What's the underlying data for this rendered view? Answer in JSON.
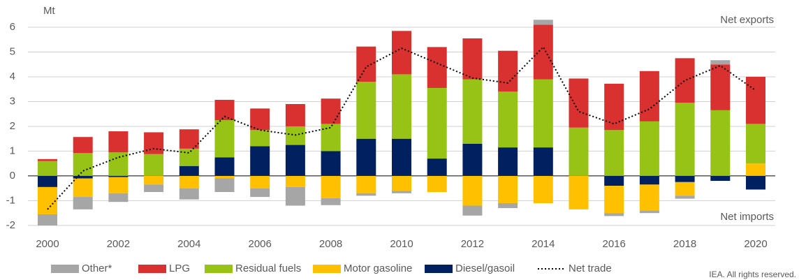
{
  "chart_data": {
    "type": "bar",
    "stacked": true,
    "y_label": "Mt",
    "annotations": [
      "Net exports",
      "Net imports"
    ],
    "credit": "IEA. All rights reserved.",
    "categories": [
      "2000",
      null,
      "2002",
      null,
      "2004",
      null,
      "2006",
      null,
      "2008",
      null,
      "2010",
      null,
      "2012",
      null,
      "2014",
      null,
      "2016",
      null,
      "2018",
      null,
      "2020"
    ],
    "series": [
      {
        "name": "Other*",
        "color": "#a6a6a6",
        "values": [
          -0.45,
          -0.5,
          -0.35,
          -0.3,
          -0.45,
          -0.55,
          -0.35,
          -0.75,
          -0.28,
          -0.1,
          -0.1,
          0,
          -0.4,
          -0.2,
          0.2,
          0,
          -0.12,
          -0.1,
          -0.12,
          0.17,
          0
        ]
      },
      {
        "name": "LPG",
        "color": "#d9312f",
        "values": [
          0.08,
          0.65,
          0.85,
          0.88,
          0.78,
          0.82,
          0.87,
          0.9,
          1.02,
          1.42,
          1.75,
          1.65,
          1.65,
          1.65,
          2.2,
          1.98,
          1.87,
          2.03,
          1.8,
          1.85,
          1.9
        ]
      },
      {
        "name": "Residual fuels",
        "color": "#97c216",
        "values": [
          0.6,
          0.92,
          0.95,
          0.88,
          0.7,
          1.5,
          0.65,
          0.75,
          1.1,
          2.3,
          2.6,
          2.85,
          2.6,
          2.25,
          2.75,
          1.95,
          1.85,
          2.2,
          2.95,
          2.65,
          1.6
        ]
      },
      {
        "name": "Motor gasoline",
        "color": "#ffc000",
        "values": [
          -1.1,
          -0.75,
          -0.65,
          -0.35,
          -0.5,
          -0.1,
          -0.5,
          -0.45,
          -0.9,
          -0.7,
          -0.6,
          -0.65,
          -1.2,
          -1.1,
          -1.1,
          -1.35,
          -1.1,
          -1.05,
          -0.55,
          0,
          0.5
        ]
      },
      {
        "name": "Diesel/gasoil",
        "color": "#002060",
        "values": [
          -0.45,
          -0.1,
          -0.05,
          0,
          0.4,
          0.75,
          1.2,
          1.25,
          1.0,
          1.5,
          1.5,
          0.7,
          1.3,
          1.15,
          1.15,
          0,
          -0.4,
          -0.35,
          -0.25,
          -0.2,
          -0.55
        ]
      },
      {
        "name": "Net trade",
        "type": "line",
        "color": "#000000",
        "values": [
          -1.35,
          0.2,
          0.75,
          1.1,
          0.93,
          2.4,
          1.85,
          1.65,
          1.95,
          4.4,
          5.15,
          4.55,
          3.95,
          3.75,
          5.2,
          2.6,
          2.1,
          2.7,
          3.85,
          4.45,
          3.45
        ]
      }
    ],
    "ylim": [
      -2.2,
      6.5
    ],
    "yticks": [
      -2,
      -1,
      0,
      1,
      2,
      3,
      4,
      5,
      6
    ],
    "grid": true
  }
}
